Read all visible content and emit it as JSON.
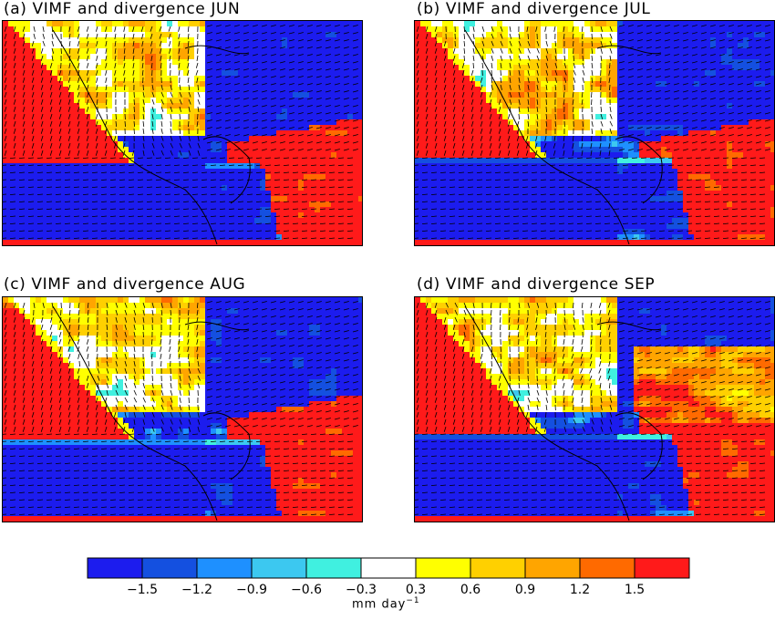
{
  "panels": [
    {
      "title": "(a) VIMF and divergence  JUN"
    },
    {
      "title": "(b) VIMF and divergence  JUL"
    },
    {
      "title": "(c) VIMF and divergence  AUG"
    },
    {
      "title": "(d) VIMF and divergence  SEP"
    }
  ],
  "colorbar": {
    "colors": [
      "#1c1cee",
      "#1450e0",
      "#1e90ff",
      "#3cc8f0",
      "#40f0e0",
      "#ffffff",
      "#ffff00",
      "#ffd000",
      "#ffa500",
      "#ff6a00",
      "#ff1a1a"
    ],
    "tick_labels": [
      "−1.5",
      "−1.2",
      "−0.9",
      "−0.6",
      "−0.3",
      "0.3",
      "0.6",
      "0.9",
      "1.2",
      "1.5"
    ],
    "units_text": "mm  day",
    "units_exponent": "−1"
  },
  "chart_data": [
    {
      "type": "heatmap",
      "title": "(a) VIMF and divergence  JUN",
      "levels": [
        -1.5,
        -1.2,
        -0.9,
        -0.6,
        -0.3,
        0.3,
        0.6,
        0.9,
        1.2,
        1.5
      ],
      "units": "mm day⁻¹"
    },
    {
      "type": "heatmap",
      "title": "(b) VIMF and divergence  JUL",
      "levels": [
        -1.5,
        -1.2,
        -0.9,
        -0.6,
        -0.3,
        0.3,
        0.6,
        0.9,
        1.2,
        1.5
      ],
      "units": "mm day⁻¹"
    },
    {
      "type": "heatmap",
      "title": "(c) VIMF and divergence  AUG",
      "levels": [
        -1.5,
        -1.2,
        -0.9,
        -0.6,
        -0.3,
        0.3,
        0.6,
        0.9,
        1.2,
        1.5
      ],
      "units": "mm day⁻¹"
    },
    {
      "type": "heatmap",
      "title": "(d) VIMF and divergence  SEP",
      "levels": [
        -1.5,
        -1.2,
        -0.9,
        -0.6,
        -0.3,
        0.3,
        0.6,
        0.9,
        1.2,
        1.5
      ],
      "units": "mm day⁻¹"
    }
  ]
}
